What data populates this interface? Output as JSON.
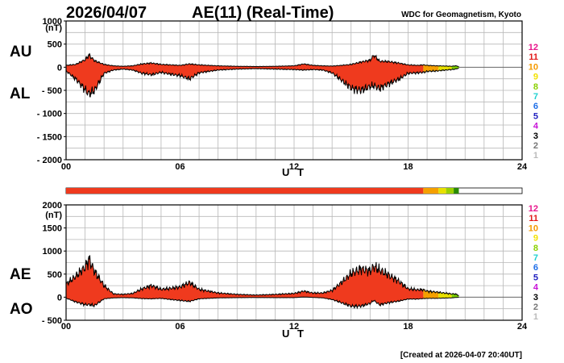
{
  "header": {
    "date": "2026/04/07",
    "title": "AE(11) (Real-Time)",
    "credit": "WDC for Geomagnetism, Kyoto"
  },
  "footer": {
    "created": "[Created at 2026-04-07 20:40UT]"
  },
  "legend": {
    "levels": [
      {
        "label": "12",
        "color": "#e8168c"
      },
      {
        "label": "11",
        "color": "#e21a1a"
      },
      {
        "label": "10",
        "color": "#f59a00"
      },
      {
        "label": "9",
        "color": "#f2e200"
      },
      {
        "label": "8",
        "color": "#8ad000"
      },
      {
        "label": "7",
        "color": "#1fd0d0"
      },
      {
        "label": "6",
        "color": "#1f6fe8"
      },
      {
        "label": "5",
        "color": "#2222c0"
      },
      {
        "label": "4",
        "color": "#c814d8"
      },
      {
        "label": "3",
        "color": "#000000"
      },
      {
        "label": "2",
        "color": "#777777"
      },
      {
        "label": "1",
        "color": "#bbbbbb"
      }
    ]
  },
  "chart_data": [
    {
      "type": "area",
      "name": "AU/AL",
      "unit": "(nT)",
      "xlabel": "U T",
      "xlim": [
        0,
        24
      ],
      "x_ticks": [
        "00",
        "06",
        "12",
        "18",
        "24"
      ],
      "ylim": [
        -2000,
        1000
      ],
      "y_ticks": [
        "1000",
        "500",
        "0",
        "- 500",
        "- 1000",
        "- 1500",
        "- 2000"
      ],
      "y_tick_values": [
        1000,
        500,
        0,
        -500,
        -1000,
        -1500,
        -2000
      ],
      "grid": true,
      "labels": {
        "upper": "AU",
        "lower": "AL"
      },
      "x": [
        0,
        0.5,
        1,
        1.2,
        1.5,
        2,
        2.5,
        3,
        3.5,
        4,
        4.5,
        5,
        5.5,
        6,
        6.5,
        7,
        7.5,
        8,
        9,
        10,
        11,
        12,
        12.5,
        13,
        13.5,
        14,
        14.5,
        15,
        15.5,
        16,
        16.2,
        16.5,
        17,
        17.5,
        18,
        18.5,
        18.8,
        19,
        19.5,
        20,
        20.3,
        20.5,
        20.67
      ],
      "series": [
        {
          "name": "AU",
          "values": [
            40,
            60,
            160,
            260,
            140,
            60,
            30,
            20,
            30,
            70,
            90,
            60,
            50,
            40,
            70,
            50,
            40,
            30,
            20,
            15,
            20,
            30,
            70,
            40,
            30,
            25,
            40,
            60,
            110,
            150,
            260,
            130,
            120,
            90,
            50,
            40,
            50,
            40,
            30,
            25,
            20,
            30,
            15
          ]
        },
        {
          "name": "AL",
          "values": [
            -80,
            -250,
            -480,
            -580,
            -500,
            -130,
            -60,
            -40,
            -60,
            -130,
            -160,
            -110,
            -150,
            -180,
            -250,
            -120,
            -90,
            -60,
            -40,
            -30,
            -40,
            -50,
            -60,
            -50,
            -60,
            -120,
            -280,
            -450,
            -500,
            -420,
            -400,
            -460,
            -350,
            -260,
            -130,
            -120,
            -110,
            -90,
            -80,
            -60,
            -50,
            -40,
            -20
          ]
        }
      ],
      "activity_colors": [
        {
          "from": 0,
          "to": 18.8,
          "color": "#ef3a1e"
        },
        {
          "from": 18.8,
          "to": 19.6,
          "color": "#f5a000"
        },
        {
          "from": 19.6,
          "to": 20.3,
          "color": "#e8e000"
        },
        {
          "from": 20.3,
          "to": 20.67,
          "color": "#7ccf00"
        }
      ]
    },
    {
      "type": "area",
      "name": "AE/AO",
      "unit": "(nT)",
      "xlabel": "U T",
      "xlim": [
        0,
        24
      ],
      "x_ticks": [
        "00",
        "06",
        "12",
        "18",
        "24"
      ],
      "ylim": [
        -500,
        2000
      ],
      "y_ticks": [
        "2000",
        "1500",
        "1000",
        "500",
        "0",
        "- 500"
      ],
      "y_tick_values": [
        2000,
        1500,
        1000,
        500,
        0,
        -500
      ],
      "grid": true,
      "labels": {
        "upper": "AE",
        "lower": "AO"
      },
      "x": [
        0,
        0.5,
        1,
        1.2,
        1.5,
        2,
        2.5,
        3,
        3.5,
        4,
        4.5,
        5,
        5.5,
        6,
        6.5,
        7,
        7.5,
        8,
        9,
        10,
        11,
        12,
        12.5,
        13,
        13.5,
        14,
        14.5,
        15,
        15.5,
        16,
        16.2,
        16.5,
        17,
        17.5,
        18,
        18.5,
        18.8,
        19,
        19.5,
        20,
        20.3,
        20.5,
        20.67
      ],
      "series": [
        {
          "name": "AE",
          "values": [
            280,
            450,
            650,
            820,
            560,
            250,
            70,
            60,
            80,
            180,
            250,
            170,
            190,
            220,
            320,
            170,
            130,
            90,
            60,
            45,
            60,
            80,
            130,
            90,
            90,
            145,
            320,
            510,
            610,
            570,
            660,
            590,
            470,
            350,
            180,
            160,
            160,
            130,
            110,
            85,
            70,
            70,
            35
          ]
        },
        {
          "name": "AO",
          "values": [
            -20,
            -100,
            -160,
            -160,
            -180,
            -35,
            -15,
            -10,
            -15,
            -30,
            -35,
            -25,
            -50,
            -70,
            -90,
            -35,
            -25,
            -15,
            -10,
            -8,
            -10,
            -10,
            5,
            -5,
            -15,
            -50,
            -120,
            -195,
            -195,
            -135,
            -70,
            -165,
            -115,
            -85,
            -40,
            -40,
            -30,
            -25,
            -25,
            -18,
            -15,
            -5,
            -3
          ]
        }
      ],
      "activity_colors": [
        {
          "from": 0,
          "to": 18.8,
          "color": "#ef3a1e"
        },
        {
          "from": 18.8,
          "to": 19.6,
          "color": "#f5a000"
        },
        {
          "from": 19.6,
          "to": 20.3,
          "color": "#e8e000"
        },
        {
          "from": 20.3,
          "to": 20.67,
          "color": "#7ccf00"
        }
      ]
    }
  ],
  "activity_bar": {
    "segments": [
      {
        "from": 0,
        "to": 18.8,
        "color": "#ef3a1e"
      },
      {
        "from": 18.8,
        "to": 19.6,
        "color": "#f5a000"
      },
      {
        "from": 19.6,
        "to": 20.0,
        "color": "#e8e000"
      },
      {
        "from": 20.0,
        "to": 20.4,
        "color": "#9ad000"
      },
      {
        "from": 20.4,
        "to": 20.67,
        "color": "#2a8a00"
      }
    ]
  }
}
